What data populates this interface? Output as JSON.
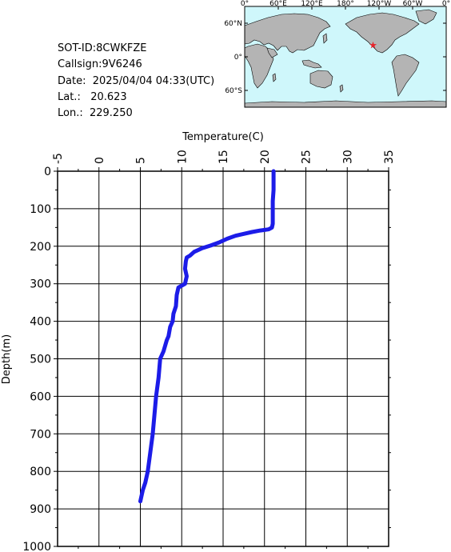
{
  "header": {
    "sot_id": "SOT-ID:8CWKFZE",
    "callsign": "Callsign:9V6246",
    "date": "Date:  2025/04/04 04:33(UTC)",
    "lat": "Lat.:   20.623",
    "lon": "Lon.:  229.250"
  },
  "map": {
    "lon_labels": [
      "0°",
      "60°E",
      "120°E",
      "180°",
      "120°W",
      "60°W",
      "0°"
    ],
    "lat_labels": [
      "60°N",
      "0°",
      "60°S"
    ],
    "ocean_color": "#cff7fb",
    "land_color": "#b4b4b4",
    "marker_color": "#e8232a",
    "marker_lon": 229.25,
    "marker_lat": 20.623
  },
  "chart_data": {
    "type": "line",
    "xlabel": "Temperature(C)",
    "ylabel": "Depth(m)",
    "xlim": [
      -5,
      35
    ],
    "ylim": [
      1000,
      0
    ],
    "x_ticks": [
      "-5",
      "0",
      "5",
      "10",
      "15",
      "20",
      "25",
      "30",
      "35"
    ],
    "y_ticks": [
      "0",
      "100",
      "200",
      "300",
      "400",
      "500",
      "600",
      "700",
      "800",
      "900",
      "1000"
    ],
    "grid": true,
    "line_color": "#1c1ce8",
    "series": [
      {
        "temperature": [
          21.1,
          21.1,
          21.1,
          21.0,
          21.0,
          21.0,
          21.0,
          20.9,
          20.5,
          19.5,
          18.5,
          17.5,
          16.5,
          15.5,
          14.5,
          13.5,
          12.5,
          11.5,
          11.0,
          10.6,
          10.5,
          10.4,
          10.6,
          10.5,
          10.4,
          9.6,
          9.4,
          9.3,
          9.0,
          8.9,
          8.6,
          8.4,
          8.2,
          7.8,
          7.4,
          7.2,
          6.9,
          6.7,
          6.5,
          6.2,
          5.9,
          5.6,
          5.3,
          5.1,
          5.0
        ],
        "depth": [
          0,
          20,
          50,
          80,
          100,
          120,
          140,
          150,
          155,
          158,
          162,
          167,
          172,
          180,
          190,
          198,
          205,
          215,
          225,
          230,
          240,
          260,
          280,
          290,
          300,
          310,
          330,
          360,
          380,
          400,
          415,
          440,
          450,
          480,
          500,
          550,
          600,
          650,
          700,
          750,
          800,
          830,
          850,
          870,
          880
        ]
      }
    ]
  }
}
